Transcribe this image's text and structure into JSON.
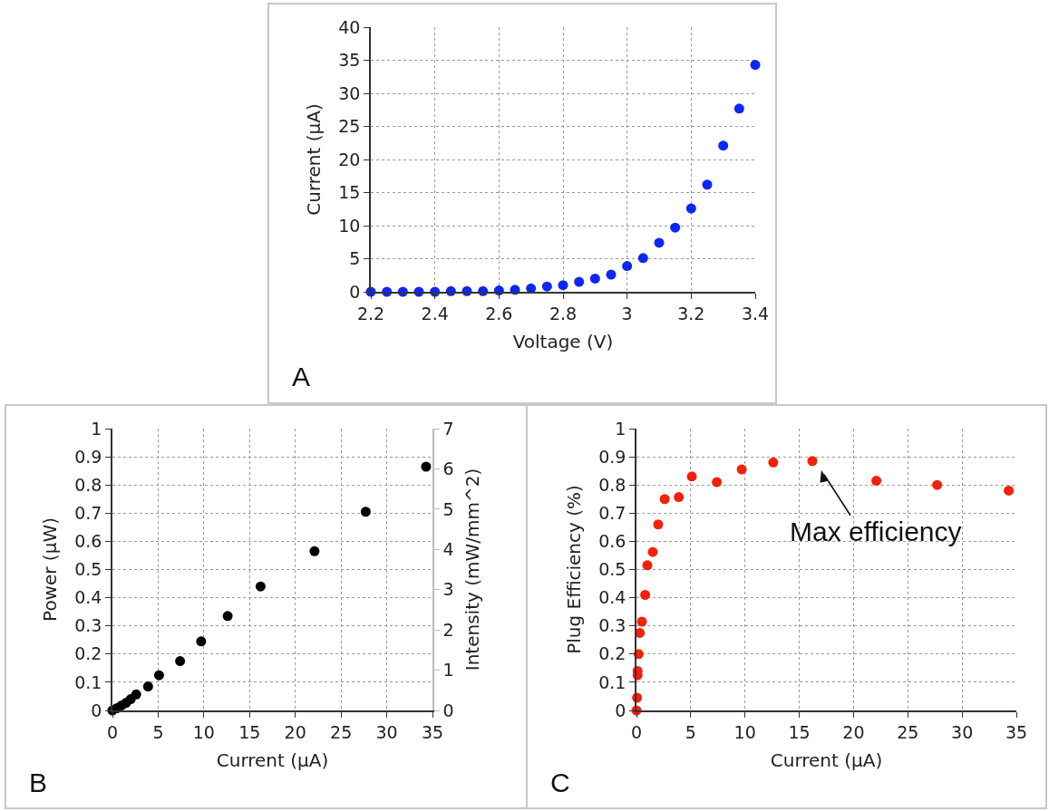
{
  "chart_data": [
    {
      "type": "scatter",
      "xlabel": "Voltage (V)",
      "ylabel": "Current (µA)",
      "color": "#0a28f5",
      "marker": "circle",
      "grid": true,
      "x": [
        2.2,
        2.25,
        2.3,
        2.35,
        2.4,
        2.45,
        2.5,
        2.55,
        2.6,
        2.65,
        2.7,
        2.75,
        2.8,
        2.85,
        2.9,
        2.95,
        3.0,
        3.05,
        3.1,
        3.15,
        3.2,
        3.25,
        3.3,
        3.35,
        3.4
      ],
      "values": [
        0,
        0,
        0,
        0,
        0,
        0.1,
        0.1,
        0.1,
        0.2,
        0.3,
        0.5,
        0.8,
        1.0,
        1.5,
        2.0,
        2.6,
        3.9,
        5.1,
        7.4,
        9.7,
        12.6,
        16.2,
        22.1,
        27.7,
        34.3
      ],
      "xlim": [
        2.2,
        3.4
      ],
      "xticks": [
        2.2,
        2.4,
        2.6,
        2.8,
        3,
        3.2,
        3.4
      ],
      "ylim": [
        0,
        40
      ],
      "yticks": [
        0,
        5,
        10,
        15,
        20,
        25,
        30,
        35,
        40
      ],
      "annotations": [
        "A"
      ]
    },
    {
      "type": "scatter",
      "xlabel": "Current (µA)",
      "ylabel": "Power (µW)",
      "y2label": "Intensity (mW/mm^2)",
      "color": "#000000",
      "marker": "circle",
      "grid": true,
      "x": [
        0,
        0.5,
        1.0,
        1.5,
        2.0,
        2.6,
        3.9,
        5.1,
        7.4,
        9.7,
        12.6,
        16.2,
        22.1,
        27.7,
        34.3
      ],
      "values": [
        0,
        0.008,
        0.018,
        0.027,
        0.04,
        0.057,
        0.085,
        0.125,
        0.175,
        0.245,
        0.335,
        0.44,
        0.565,
        0.705,
        0.865
      ],
      "xlim": [
        0,
        35
      ],
      "xticks": [
        0,
        5,
        10,
        15,
        20,
        25,
        30,
        35
      ],
      "ylim": [
        0,
        1
      ],
      "yticks": [
        0,
        0.1,
        0.2,
        0.3,
        0.4,
        0.5,
        0.6,
        0.7,
        0.8,
        0.9,
        1
      ],
      "y2lim": [
        0,
        7
      ],
      "y2ticks": [
        0,
        1,
        2,
        3,
        4,
        5,
        6,
        7
      ],
      "annotations": [
        "B"
      ]
    },
    {
      "type": "scatter",
      "xlabel": "Current (µA)",
      "ylabel": "Plug Efficiency (%)",
      "color": "#f5200a",
      "marker": "circle",
      "grid": true,
      "x": [
        0,
        0.05,
        0.1,
        0.1,
        0.2,
        0.3,
        0.5,
        0.8,
        1.0,
        1.5,
        2.0,
        2.6,
        3.9,
        5.1,
        7.4,
        9.7,
        12.6,
        16.2,
        22.1,
        27.7,
        34.3
      ],
      "values": [
        0,
        0.045,
        0.125,
        0.14,
        0.2,
        0.275,
        0.315,
        0.41,
        0.515,
        0.562,
        0.66,
        0.75,
        0.757,
        0.83,
        0.81,
        0.855,
        0.88,
        0.885,
        0.815,
        0.8,
        0.78
      ],
      "xlim": [
        0,
        35
      ],
      "xticks": [
        0,
        5,
        10,
        15,
        20,
        25,
        30,
        35
      ],
      "ylim": [
        0,
        1
      ],
      "yticks": [
        0,
        0.1,
        0.2,
        0.3,
        0.4,
        0.5,
        0.6,
        0.7,
        0.8,
        0.9,
        1
      ],
      "annotations": [
        {
          "text": "Max efficiency",
          "x": 16.2,
          "y": 0.885
        },
        "C"
      ]
    }
  ]
}
